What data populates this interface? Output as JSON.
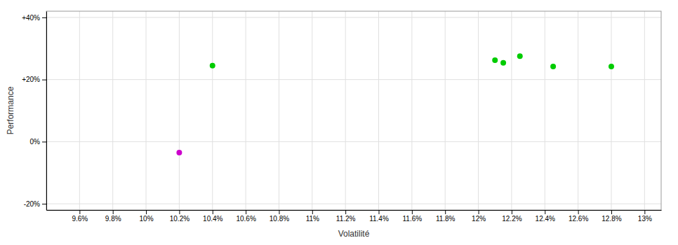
{
  "chart_data": {
    "type": "scatter",
    "xlabel": "Volatilité",
    "ylabel": "Performance",
    "xlim": [
      0.094,
      0.131
    ],
    "ylim": [
      -0.22,
      0.42
    ],
    "xticks": [
      {
        "value": 0.096,
        "label": "9.6%"
      },
      {
        "value": 0.098,
        "label": "9.8%"
      },
      {
        "value": 0.1,
        "label": "10%"
      },
      {
        "value": 0.102,
        "label": "10.2%"
      },
      {
        "value": 0.104,
        "label": "10.4%"
      },
      {
        "value": 0.106,
        "label": "10.6%"
      },
      {
        "value": 0.108,
        "label": "10.8%"
      },
      {
        "value": 0.11,
        "label": "11%"
      },
      {
        "value": 0.112,
        "label": "11.2%"
      },
      {
        "value": 0.114,
        "label": "11.4%"
      },
      {
        "value": 0.116,
        "label": "11.6%"
      },
      {
        "value": 0.118,
        "label": "11.8%"
      },
      {
        "value": 0.12,
        "label": "12%"
      },
      {
        "value": 0.122,
        "label": "12.2%"
      },
      {
        "value": 0.124,
        "label": "12.4%"
      },
      {
        "value": 0.126,
        "label": "12.6%"
      },
      {
        "value": 0.128,
        "label": "12.8%"
      },
      {
        "value": 0.13,
        "label": "13%"
      }
    ],
    "yticks": [
      {
        "value": -0.2,
        "label": "-20%"
      },
      {
        "value": 0.0,
        "label": "0%"
      },
      {
        "value": 0.2,
        "label": "+20%"
      },
      {
        "value": 0.4,
        "label": "+40%"
      }
    ],
    "grid": true,
    "series": [
      {
        "color": "#00cc00",
        "x": [
          0.104,
          0.121,
          0.1215,
          0.1225,
          0.1245,
          0.128
        ],
        "values": [
          0.245,
          0.262,
          0.254,
          0.275,
          0.242,
          0.242
        ]
      },
      {
        "color": "#cc00cc",
        "x": [
          0.102
        ],
        "values": [
          -0.035
        ]
      }
    ]
  }
}
